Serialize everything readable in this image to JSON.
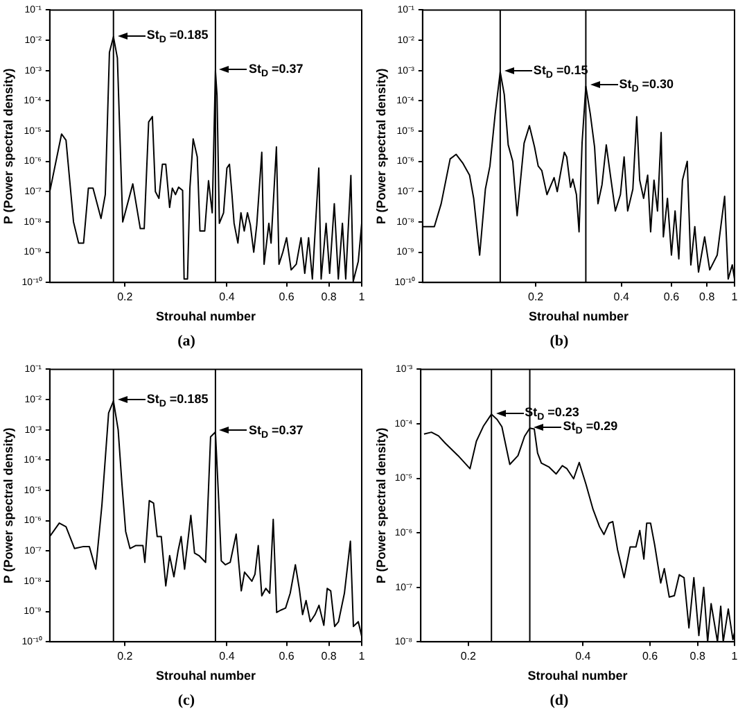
{
  "chart_data": [
    {
      "type": "line",
      "xlabel": "Strouhal number",
      "ylabel": "P (Power spectral density)",
      "log": "xy",
      "grid": false,
      "color": "#000000",
      "xlim": [
        0.12,
        1
      ],
      "ylim": [
        1e-10,
        0.1
      ],
      "xticks": [
        0.2,
        0.4,
        0.6,
        0.8,
        1
      ],
      "yticks": [
        {
          "value": 1e-10,
          "label": "10⁻¹⁰"
        },
        {
          "value": 1e-09,
          "label": "10⁻⁹"
        },
        {
          "value": 1e-08,
          "label": "10⁻⁸"
        },
        {
          "value": 1e-07,
          "label": "10⁻⁷"
        },
        {
          "value": 1e-06,
          "label": "10⁻⁶"
        },
        {
          "value": 1e-05,
          "label": "10⁻⁵"
        },
        {
          "value": 0.0001,
          "label": "10⁻⁴"
        },
        {
          "value": 0.001,
          "label": "10⁻³"
        },
        {
          "value": 0.01,
          "label": "10⁻²"
        },
        {
          "value": 0.1,
          "label": "10⁻¹"
        }
      ],
      "x": [
        0.12,
        0.13,
        0.134,
        0.141,
        0.146,
        0.151,
        0.156,
        0.161,
        0.17,
        0.175,
        0.18,
        0.185,
        0.19,
        0.197,
        0.211,
        0.222,
        0.228,
        0.235,
        0.241,
        0.246,
        0.252,
        0.258,
        0.264,
        0.271,
        0.276,
        0.282,
        0.288,
        0.296,
        0.299,
        0.306,
        0.311,
        0.318,
        0.327,
        0.333,
        0.344,
        0.353,
        0.362,
        0.37,
        0.374,
        0.38,
        0.391,
        0.4,
        0.407,
        0.414,
        0.42,
        0.431,
        0.44,
        0.45,
        0.46,
        0.469,
        0.48,
        0.49,
        0.507,
        0.515,
        0.532,
        0.54,
        0.56,
        0.57,
        0.585,
        0.6,
        0.619,
        0.641,
        0.662,
        0.679,
        0.697,
        0.715,
        0.747,
        0.759,
        0.785,
        0.804,
        0.83,
        0.853,
        0.877,
        0.897,
        0.929,
        0.944,
        0.977,
        1.0
      ],
      "values": [
        1e-07,
        8e-06,
        5e-06,
        1e-08,
        2e-09,
        2e-09,
        1.3e-07,
        1.3e-07,
        1.3e-08,
        8e-08,
        0.004,
        0.013,
        0.0026,
        1e-08,
        1.8e-07,
        6e-09,
        6e-09,
        2e-05,
        3e-05,
        1e-07,
        6e-08,
        8e-07,
        8e-07,
        3e-08,
        1.3e-07,
        8e-08,
        1.4e-07,
        1.1e-07,
        1.3e-10,
        1.3e-10,
        1.3e-07,
        5.5e-06,
        1.4e-06,
        5e-09,
        5e-09,
        2.3e-07,
        2e-08,
        0.001,
        0.00015,
        9e-09,
        2e-08,
        6e-07,
        8e-07,
        8e-08,
        9e-09,
        2e-09,
        2e-08,
        5e-09,
        2e-08,
        8e-09,
        1e-09,
        8e-09,
        2e-06,
        4e-10,
        9e-09,
        2e-09,
        3e-06,
        4e-10,
        1e-09,
        3e-09,
        2.6e-10,
        4e-10,
        3e-09,
        2e-10,
        3e-09,
        1.3e-10,
        6e-07,
        1.3e-10,
        9e-09,
        2e-10,
        4e-08,
        1.3e-10,
        9e-09,
        1.3e-10,
        3.4e-07,
        1.1e-10,
        5e-10,
        9e-09
      ],
      "ref_lines": [
        {
          "axis": "x",
          "value": 0.185,
          "color": "#000000"
        },
        {
          "axis": "x",
          "value": 0.37,
          "color": "#000000"
        }
      ],
      "annotations": [
        {
          "text": "St$_{D}$ =0.185",
          "x": 0.185,
          "y": 0.013
        },
        {
          "text": "St$_{D}$ =0.37",
          "x": 0.37,
          "y": 0.001
        },
        "(a)"
      ]
    },
    {
      "type": "line",
      "xlabel": "Strouhal number",
      "ylabel": "P (Power spectral density)",
      "log": "xy",
      "grid": false,
      "color": "#000000",
      "xlim": [
        0.08,
        1
      ],
      "ylim": [
        1e-10,
        0.1
      ],
      "xticks": [
        0.2,
        0.4,
        0.6,
        0.8,
        1
      ],
      "yticks": [
        {
          "value": 1e-10,
          "label": "10⁻¹⁰"
        },
        {
          "value": 1e-09,
          "label": "10⁻⁹"
        },
        {
          "value": 1e-08,
          "label": "10⁻⁸"
        },
        {
          "value": 1e-07,
          "label": "10⁻⁷"
        },
        {
          "value": 1e-06,
          "label": "10⁻⁶"
        },
        {
          "value": 1e-05,
          "label": "10⁻⁵"
        },
        {
          "value": 0.0001,
          "label": "10⁻⁴"
        },
        {
          "value": 0.001,
          "label": "10⁻³"
        },
        {
          "value": 0.01,
          "label": "10⁻²"
        },
        {
          "value": 0.1,
          "label": "10⁻¹"
        }
      ],
      "x": [
        0.08,
        0.088,
        0.093,
        0.1,
        0.105,
        0.111,
        0.117,
        0.121,
        0.127,
        0.133,
        0.138,
        0.144,
        0.15,
        0.155,
        0.16,
        0.166,
        0.172,
        0.182,
        0.19,
        0.198,
        0.204,
        0.21,
        0.219,
        0.232,
        0.238,
        0.252,
        0.257,
        0.265,
        0.27,
        0.278,
        0.284,
        0.291,
        0.3,
        0.311,
        0.322,
        0.331,
        0.342,
        0.354,
        0.367,
        0.381,
        0.397,
        0.409,
        0.421,
        0.439,
        0.453,
        0.464,
        0.479,
        0.495,
        0.507,
        0.521,
        0.536,
        0.552,
        0.562,
        0.581,
        0.6,
        0.618,
        0.637,
        0.656,
        0.682,
        0.702,
        0.725,
        0.747,
        0.785,
        0.818,
        0.869,
        0.923,
        0.95,
        0.982,
        1.0
      ],
      "values": [
        7e-09,
        7e-09,
        4e-08,
        1.2e-06,
        1.7e-06,
        8.5e-07,
        3.5e-07,
        6e-08,
        8e-10,
        1.2e-07,
        7e-07,
        3.7e-05,
        0.0009,
        0.00016,
        3.5e-06,
        1e-06,
        1.6e-08,
        4e-06,
        1.5e-05,
        3e-06,
        7e-07,
        5e-07,
        8e-08,
        2.9e-07,
        1e-07,
        2e-06,
        1.4e-06,
        1.4e-07,
        2.6e-07,
        8e-08,
        4.7e-09,
        4e-06,
        0.0003,
        3.7e-05,
        3e-06,
        4e-08,
        1.7e-07,
        3.5e-06,
        2.9e-07,
        2.3e-08,
        8e-08,
        1.4e-06,
        2.3e-08,
        1.2e-07,
        3e-05,
        2.4e-07,
        6e-08,
        3.5e-07,
        4.7e-09,
        2.4e-07,
        2.3e-08,
        9e-06,
        3.2e-09,
        6e-08,
        8e-10,
        2.3e-08,
        6e-10,
        2.4e-07,
        1e-06,
        3.8e-10,
        7e-09,
        2.2e-10,
        3.2e-09,
        2.6e-10,
        8e-10,
        7e-08,
        1.3e-10,
        3.8e-10,
        1.3e-10
      ],
      "ref_lines": [
        {
          "axis": "x",
          "value": 0.15,
          "color": "#000000"
        },
        {
          "axis": "x",
          "value": 0.3,
          "color": "#000000"
        }
      ],
      "annotations": [
        {
          "text": "St$_{D}$ =0.15",
          "x": 0.15,
          "y": 0.0009
        },
        {
          "text": "St$_{D}$ =0.30",
          "x": 0.3,
          "y": 0.0003
        },
        "(b)"
      ]
    },
    {
      "type": "line",
      "xlabel": "Strouhal number",
      "ylabel": "P (Power spectral density)",
      "log": "xy",
      "grid": false,
      "color": "#000000",
      "xlim": [
        0.12,
        1
      ],
      "ylim": [
        1e-10,
        0.1
      ],
      "xticks": [
        0.2,
        0.4,
        0.6,
        0.8,
        1
      ],
      "yticks": [
        {
          "value": 1e-10,
          "label": "10⁻¹⁰"
        },
        {
          "value": 1e-09,
          "label": "10⁻⁹"
        },
        {
          "value": 1e-08,
          "label": "10⁻⁸"
        },
        {
          "value": 1e-07,
          "label": "10⁻⁷"
        },
        {
          "value": 1e-06,
          "label": "10⁻⁶"
        },
        {
          "value": 1e-05,
          "label": "10⁻⁵"
        },
        {
          "value": 0.0001,
          "label": "10⁻⁴"
        },
        {
          "value": 0.001,
          "label": "10⁻³"
        },
        {
          "value": 0.01,
          "label": "10⁻²"
        },
        {
          "value": 0.1,
          "label": "10⁻¹"
        }
      ],
      "x": [
        0.12,
        0.128,
        0.134,
        0.142,
        0.151,
        0.157,
        0.164,
        0.171,
        0.179,
        0.185,
        0.191,
        0.196,
        0.201,
        0.207,
        0.215,
        0.226,
        0.229,
        0.236,
        0.243,
        0.249,
        0.256,
        0.264,
        0.271,
        0.279,
        0.287,
        0.293,
        0.3,
        0.313,
        0.321,
        0.331,
        0.346,
        0.358,
        0.37,
        0.378,
        0.385,
        0.396,
        0.409,
        0.426,
        0.441,
        0.451,
        0.463,
        0.474,
        0.484,
        0.495,
        0.507,
        0.521,
        0.535,
        0.548,
        0.561,
        0.576,
        0.596,
        0.615,
        0.637,
        0.654,
        0.669,
        0.685,
        0.705,
        0.728,
        0.748,
        0.773,
        0.791,
        0.81,
        0.832,
        0.854,
        0.889,
        0.926,
        0.945,
        0.977,
        1.0
      ],
      "values": [
        3e-07,
        8.3e-07,
        6.3e-07,
        1.2e-07,
        1.4e-07,
        1.4e-07,
        2.5e-08,
        3.2e-06,
        0.0036,
        0.009,
        0.001,
        1.6e-05,
        4.4e-07,
        1.2e-07,
        1.5e-07,
        1.5e-07,
        4.2e-08,
        4.6e-06,
        3.8e-06,
        3e-07,
        3e-07,
        7e-09,
        7e-08,
        1.4e-08,
        1e-07,
        3e-07,
        2.5e-08,
        1.5e-06,
        8.5e-08,
        7e-08,
        4.2e-08,
        0.00059,
        0.00085,
        5.5e-06,
        4.7e-08,
        3.5e-08,
        4.2e-08,
        3.6e-07,
        4.8e-09,
        2e-08,
        1.4e-08,
        1e-08,
        1.7e-08,
        1.5e-07,
        3.3e-09,
        5.8e-09,
        4e-09,
        1.1e-06,
        9.3e-10,
        1.1e-09,
        1.3e-09,
        4e-09,
        3.5e-08,
        5.8e-09,
        7.9e-10,
        2.3e-09,
        4.6e-10,
        7.9e-10,
        1.6e-09,
        3.5e-10,
        5.8e-09,
        4.8e-09,
        3.2e-10,
        4.6e-10,
        4e-09,
        2.1e-07,
        3.2e-10,
        4.6e-10,
        1.5e-10
      ],
      "ref_lines": [
        {
          "axis": "x",
          "value": 0.185,
          "color": "#000000"
        },
        {
          "axis": "x",
          "value": 0.37,
          "color": "#000000"
        }
      ],
      "annotations": [
        {
          "text": "St$_{D}$ =0.185",
          "x": 0.185,
          "y": 0.009
        },
        {
          "text": "St$_{D}$ =0.37",
          "x": 0.37,
          "y": 0.00085
        },
        "(c)"
      ]
    },
    {
      "type": "line",
      "xlabel": "Strouhal number",
      "ylabel": "P (Power spectral density)",
      "log": "xy",
      "grid": false,
      "color": "#000000",
      "xlim": [
        0.15,
        1
      ],
      "ylim": [
        1e-08,
        0.001
      ],
      "xticks": [
        0.2,
        0.4,
        0.6,
        0.8,
        1
      ],
      "yticks": [
        {
          "value": 1e-08,
          "label": "10⁻⁸"
        },
        {
          "value": 1e-07,
          "label": "10⁻⁷"
        },
        {
          "value": 1e-06,
          "label": "10⁻⁶"
        },
        {
          "value": 1e-05,
          "label": "10⁻⁵"
        },
        {
          "value": 0.0001,
          "label": "10⁻⁴"
        },
        {
          "value": 0.001,
          "label": "10⁻³"
        }
      ],
      "x": [
        0.153,
        0.16,
        0.167,
        0.174,
        0.188,
        0.202,
        0.21,
        0.219,
        0.23,
        0.238,
        0.245,
        0.257,
        0.27,
        0.281,
        0.29,
        0.298,
        0.304,
        0.311,
        0.326,
        0.34,
        0.353,
        0.363,
        0.378,
        0.391,
        0.407,
        0.425,
        0.442,
        0.454,
        0.468,
        0.479,
        0.493,
        0.513,
        0.532,
        0.551,
        0.564,
        0.578,
        0.588,
        0.602,
        0.617,
        0.64,
        0.654,
        0.674,
        0.695,
        0.716,
        0.737,
        0.759,
        0.782,
        0.806,
        0.83,
        0.85,
        0.868,
        0.902,
        0.92,
        0.934,
        0.963,
        0.99,
        1.0
      ],
      "values": [
        6.5e-05,
        7e-05,
        6e-05,
        4.4e-05,
        2.6e-05,
        1.5e-05,
        4.8e-05,
        9e-05,
        0.00015,
        0.00012,
        8.8e-05,
        1.8e-05,
        2.6e-05,
        5.9e-05,
        8.3e-05,
        8e-05,
        2.9e-05,
        1.9e-05,
        1.6e-05,
        1.2e-05,
        1.7e-05,
        1.5e-05,
        9.8e-06,
        1.95e-05,
        7.9e-06,
        2.7e-06,
        1.3e-06,
        9.3e-07,
        1.5e-06,
        1.6e-06,
        4.9e-07,
        1.5e-07,
        5.5e-07,
        5.5e-07,
        1.1e-06,
        3.3e-07,
        1.5e-06,
        1.5e-06,
        6e-07,
        1.2e-07,
        2.2e-07,
        6.6e-08,
        7e-08,
        1.7e-07,
        1.5e-07,
        1.8e-08,
        1.5e-07,
        1.3e-08,
        1e-07,
        1e-08,
        5e-08,
        1e-08,
        4.5e-08,
        1e-08,
        4e-08,
        1.1e-08,
        1.5e-08
      ],
      "ref_lines": [
        {
          "axis": "x",
          "value": 0.23,
          "color": "#000000"
        },
        {
          "axis": "x",
          "value": 0.29,
          "color": "#000000"
        }
      ],
      "annotations": [
        {
          "text": "St$_{D}$ =0.23",
          "x": 0.23,
          "y": 0.00015
        },
        {
          "text": "St$_{D}$ =0.29",
          "x": 0.29,
          "y": 8.3e-05
        },
        "(d)"
      ]
    }
  ]
}
